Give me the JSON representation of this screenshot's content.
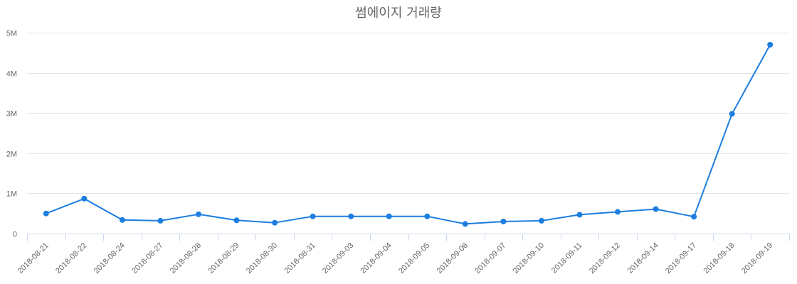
{
  "chart_data": {
    "type": "line",
    "title": "썸에이지 거래량",
    "xlabel": "",
    "ylabel": "",
    "categories": [
      "2018-08-21",
      "2018-08-22",
      "2018-08-24",
      "2018-08-27",
      "2018-08-28",
      "2018-08-29",
      "2018-08-30",
      "2018-08-31",
      "2018-09-03",
      "2018-09-04",
      "2018-09-05",
      "2018-09-06",
      "2018-09-07",
      "2018-09-10",
      "2018-09-11",
      "2018-09-12",
      "2018-09-14",
      "2018-09-17",
      "2018-09-18",
      "2018-09-19"
    ],
    "series": [
      {
        "name": "거래량",
        "color": "#1c7ee0",
        "values": [
          500000,
          870000,
          340000,
          320000,
          480000,
          330000,
          270000,
          430000,
          430000,
          430000,
          430000,
          240000,
          300000,
          320000,
          470000,
          540000,
          610000,
          420000,
          2980000,
          4700000
        ]
      }
    ],
    "ylim": [
      0,
      5000000
    ],
    "yticks": [
      0,
      1000000,
      2000000,
      3000000,
      4000000,
      5000000
    ],
    "ytick_labels": [
      "0",
      "1M",
      "2M",
      "3M",
      "4M",
      "5M"
    ],
    "grid": true,
    "legend": "none"
  }
}
